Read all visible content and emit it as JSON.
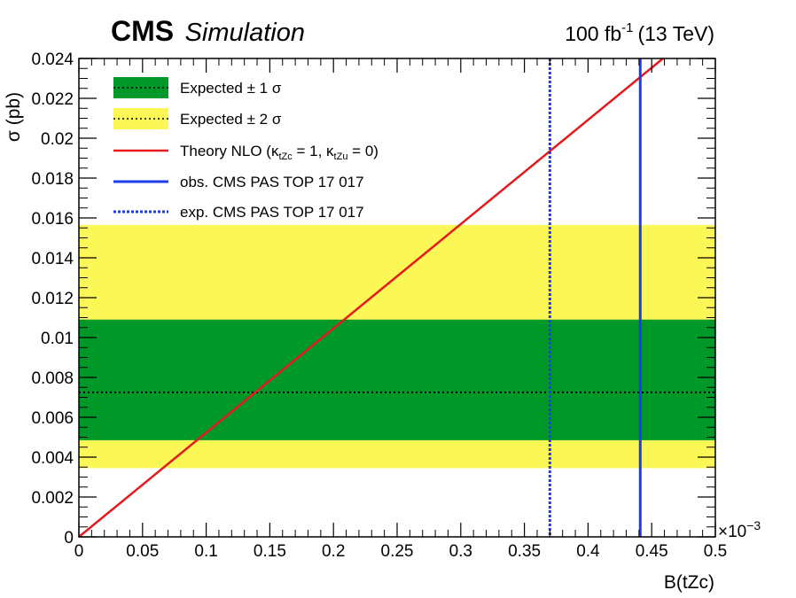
{
  "chart_data": {
    "type": "line",
    "experiment": "CMS",
    "label": "Simulation",
    "lumi": {
      "value": "100 fb",
      "exponent": "-1",
      "energy": "(13 TeV)"
    },
    "xlabel": "B(tZc)",
    "xmultiplier": "×10",
    "xmultiplier_exp": "−3",
    "ylabel": "σ (pb)",
    "xlim": [
      0,
      0.5
    ],
    "ylim": [
      0,
      0.024
    ],
    "xticks": [
      0,
      0.05,
      0.1,
      0.15,
      0.2,
      0.25,
      0.3,
      0.35,
      0.4,
      0.45,
      0.5
    ],
    "xtick_labels": [
      "0",
      "0.05",
      "0.1",
      "0.15",
      "0.2",
      "0.25",
      "0.3",
      "0.35",
      "0.4",
      "0.45",
      "0.5"
    ],
    "yticks": [
      0,
      0.002,
      0.004,
      0.006,
      0.008,
      0.01,
      0.012,
      0.014,
      0.016,
      0.018,
      0.02,
      0.022,
      0.024
    ],
    "ytick_labels": [
      "0",
      "0.002",
      "0.004",
      "0.006",
      "0.008",
      "0.01",
      "0.012",
      "0.014",
      "0.016",
      "0.018",
      "0.02",
      "0.022",
      "0.024"
    ],
    "expected": 0.00725,
    "band_1sigma": [
      0.00485,
      0.0109
    ],
    "band_2sigma": [
      0.00345,
      0.01565
    ],
    "theory": {
      "x": [
        0,
        0.5
      ],
      "y": [
        0,
        0.02615
      ]
    },
    "obs_limit_x": 0.441,
    "exp_limit_x": 0.37,
    "colors": {
      "band1": "#009929",
      "band2": "#fbf756",
      "theory": "#e41a1c",
      "limit": "#1e3ce6"
    },
    "legend": {
      "position": "top-left",
      "entries": [
        {
          "text": "Expected ± 1 σ"
        },
        {
          "text": "Expected ± 2 σ"
        },
        {
          "text": "Theory NLO (κ",
          "sub1": "tZc",
          "mid": " = 1, κ",
          "sub2": "tZu",
          "end": " = 0)"
        },
        {
          "text": "obs. CMS PAS TOP 17 017"
        },
        {
          "text": "exp. CMS PAS TOP 17 017"
        }
      ]
    }
  }
}
